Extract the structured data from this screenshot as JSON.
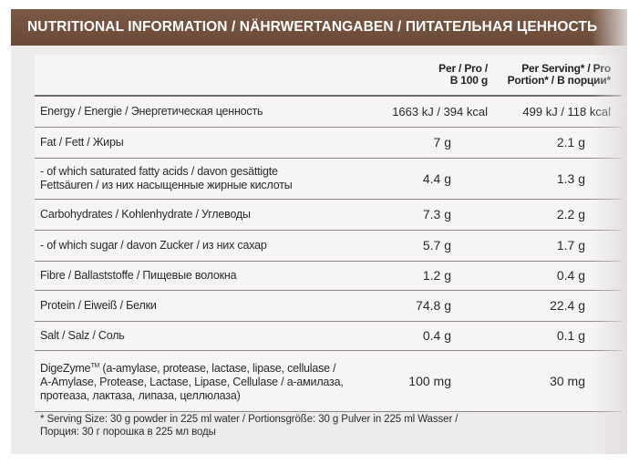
{
  "header": {
    "title": "NUTRITIONAL INFORMATION / NÄHRWERTANGABEN / ПИТАТЕЛЬНАЯ ЦЕННОСТЬ"
  },
  "columns": {
    "per100_line1": "Per / Pro /",
    "per100_line2": "В 100 g",
    "perserving_line1": "Per Serving* / Pro",
    "perserving_line2": "Portion* / В порции*"
  },
  "rows": [
    {
      "label_lines": [
        "Energy / Energie / Энергетическая ценность"
      ],
      "per100": "1663 kJ / 394 kcal",
      "serving": "499 kJ / 118 kcal"
    },
    {
      "label_lines": [
        "Fat / Fett / Жиры"
      ],
      "per100": "7 g",
      "serving": "2.1 g"
    },
    {
      "label_lines": [
        "- of which saturated fatty acids / davon gesättigte",
        "Fettsäuren / из них насыщенные жирные кислоты"
      ],
      "per100": "4.4 g",
      "serving": "1.3 g"
    },
    {
      "label_lines": [
        "Carbohydrates / Kohlenhydrate / Углеводы"
      ],
      "per100": "7.3 g",
      "serving": "2.2 g"
    },
    {
      "label_lines": [
        "- of which sugar / davon Zucker / из них сахар"
      ],
      "per100": "5.7 g",
      "serving": "1.7 g"
    },
    {
      "label_lines": [
        "Fibre / Ballaststoffe / Пищевые волокна"
      ],
      "per100": "1.2 g",
      "serving": "0.4 g"
    },
    {
      "label_lines": [
        "Protein / Eiweiß / Белки"
      ],
      "per100": "74.8 g",
      "serving": "22.4 g"
    },
    {
      "label_lines": [
        "Salt / Salz / Соль"
      ],
      "per100": "0.4 g",
      "serving": "0.1 g"
    },
    {
      "label_name": "DigeZyme",
      "label_tm": "TM",
      "label_lines": [
        " (a-amylase, protease, lactase,  lipase, cellulase /",
        "A-Amylase, Protease, Lactase, Lipase, Cellulase / а-амилаза,",
        "протеаза, лактаза, липаза, целлюлаза)"
      ],
      "per100": "100 mg",
      "serving": "30 mg"
    }
  ],
  "footer": {
    "line1": "* Serving Size: 30 g powder in 225 ml water / Portionsgröße: 30 g Pulver in 225 ml Wasser /",
    "line2": "Порция: 30 г порошка в 225 мл воды"
  }
}
